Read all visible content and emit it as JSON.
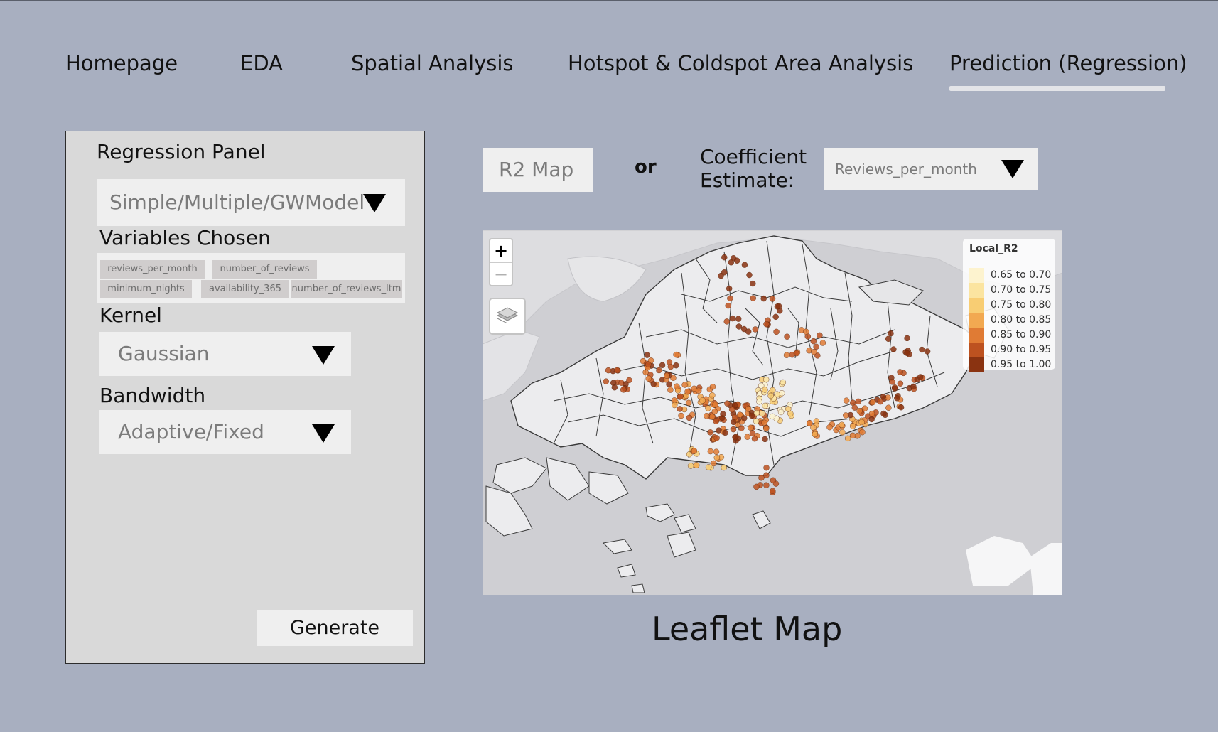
{
  "nav": {
    "tabs": [
      {
        "label": "Homepage"
      },
      {
        "label": "EDA"
      },
      {
        "label": "Spatial Analysis"
      },
      {
        "label": "Hotspot & Coldspot Area Analysis"
      },
      {
        "label": "Prediction (Regression)"
      }
    ]
  },
  "panel": {
    "title": "Regression Panel",
    "model_select": "Simple/Multiple/GWModel",
    "variables_label": "Variables Chosen",
    "variables": [
      "reviews_per_month",
      "number_of_reviews",
      "minimum_nights",
      "availability_365",
      "number_of_reviews_ltm"
    ],
    "kernel_label": "Kernel",
    "kernel_value": "Gaussian",
    "bandwidth_label": "Bandwidth",
    "bandwidth_value": "Adaptive/Fixed",
    "generate_label": "Generate"
  },
  "controls": {
    "r2_button": "R2 Map",
    "or_text": "or",
    "coef_label": "Coefficient Estimate:",
    "coef_value": "Reviews_per_month"
  },
  "map": {
    "zoom_in": "+",
    "zoom_out": "−",
    "legend_title": "Local_R2",
    "legend_items": [
      {
        "label": "0.65 to 0.70",
        "color": "#fdf3cf"
      },
      {
        "label": "0.70 to 0.75",
        "color": "#fbe4a0"
      },
      {
        "label": "0.75 to 0.80",
        "color": "#f8cd73"
      },
      {
        "label": "0.80 to 0.85",
        "color": "#f2a951"
      },
      {
        "label": "0.85 to 0.90",
        "color": "#e07b34"
      },
      {
        "label": "0.90 to 0.95",
        "color": "#bd5220"
      },
      {
        "label": "0.95 to 1.00",
        "color": "#8a3311"
      }
    ],
    "caption": "Leaflet Map"
  }
}
